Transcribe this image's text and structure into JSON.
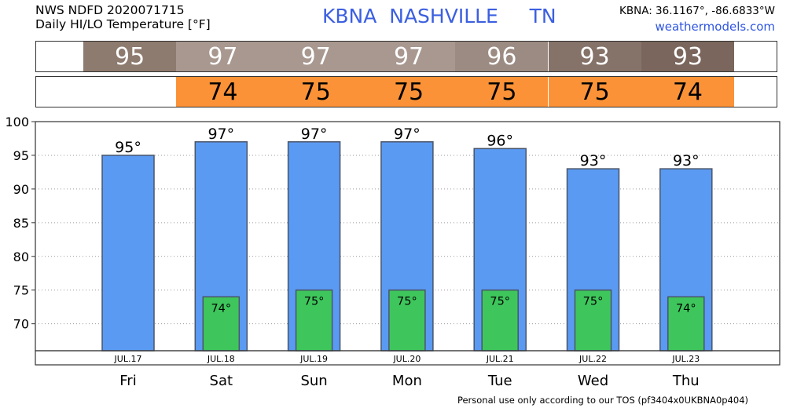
{
  "header": {
    "line1": "NWS NDFD 2020071715",
    "line2": "Daily HI/LO Temperature [°F]",
    "title": "KBNA  NASHVILLE     TN",
    "coords": "KBNA: 36.1167°, -86.6833°W",
    "site": "weathermodels.com"
  },
  "high_strip": [
    {
      "text": "95",
      "color": "#8e7b6f",
      "textColor": "#ffffff"
    },
    {
      "text": "97",
      "color": "#a89890",
      "textColor": "#ffffff"
    },
    {
      "text": "97",
      "color": "#a89890",
      "textColor": "#ffffff"
    },
    {
      "text": "97",
      "color": "#a89890",
      "textColor": "#ffffff"
    },
    {
      "text": "96",
      "color": "#9c8b82",
      "textColor": "#ffffff"
    },
    {
      "text": "93",
      "color": "#857268",
      "textColor": "#ffffff"
    },
    {
      "text": "93",
      "color": "#7a665c",
      "textColor": "#ffffff"
    }
  ],
  "low_strip": [
    {
      "text": "",
      "color": "#ffffff",
      "textColor": "#000000"
    },
    {
      "text": "74",
      "color": "#fb9237",
      "textColor": "#000000"
    },
    {
      "text": "75",
      "color": "#fb9237",
      "textColor": "#000000"
    },
    {
      "text": "75",
      "color": "#fb9237",
      "textColor": "#000000"
    },
    {
      "text": "75",
      "color": "#fb9237",
      "textColor": "#000000"
    },
    {
      "text": "75",
      "color": "#fb9237",
      "textColor": "#000000"
    },
    {
      "text": "74",
      "color": "#fb9237",
      "textColor": "#000000"
    }
  ],
  "chart_data": {
    "type": "bar",
    "categories": [
      "Fri",
      "Sat",
      "Sun",
      "Mon",
      "Tue",
      "Wed",
      "Thu"
    ],
    "dates": [
      "JUL.17",
      "JUL.18",
      "JUL.19",
      "JUL.20",
      "JUL.21",
      "JUL.22",
      "JUL.23"
    ],
    "series": [
      {
        "values": [
          95,
          97,
          97,
          97,
          96,
          93,
          93
        ],
        "labels": [
          "95°",
          "97°",
          "97°",
          "97°",
          "96°",
          "93°",
          "93°"
        ],
        "color": "#5a9af2"
      },
      {
        "values": [
          null,
          74,
          75,
          75,
          75,
          75,
          74
        ],
        "labels": [
          "",
          "74°",
          "75°",
          "75°",
          "75°",
          "75°",
          "74°"
        ],
        "color": "#3ec65c"
      }
    ],
    "yticks": [
      "100",
      "95",
      "90",
      "85",
      "80",
      "75",
      "70"
    ],
    "ylim": [
      66,
      100
    ],
    "grid": true,
    "title": "",
    "xlabel": "",
    "ylabel": ""
  },
  "footer": "Personal use only according to our TOS (pf3404x0UKBNA0p404)"
}
